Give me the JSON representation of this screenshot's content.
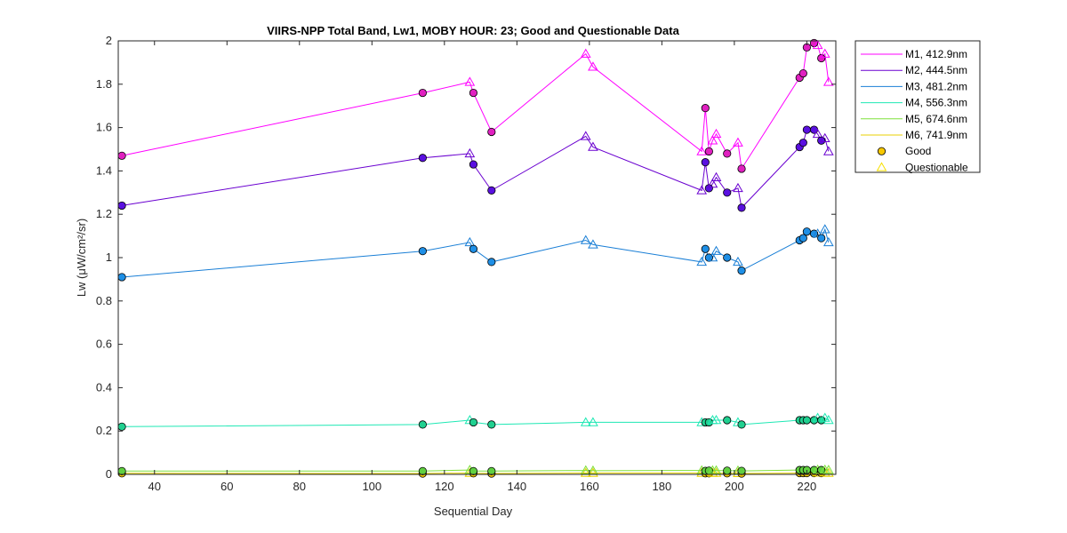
{
  "chart_data": {
    "type": "line",
    "title": "VIIRS-NPP Total Band,  Lw1, MOBY HOUR: 23;  Good and Questionable Data",
    "xlabel": "Sequential Day",
    "ylabel": "Lw (μW/cm²/sr)",
    "xlim": [
      30,
      228
    ],
    "ylim": [
      0,
      2
    ],
    "xticks": [
      40,
      60,
      80,
      100,
      120,
      140,
      160,
      180,
      200,
      220
    ],
    "yticks": [
      0,
      0.2,
      0.4,
      0.6,
      0.8,
      1,
      1.2,
      1.4,
      1.6,
      1.8,
      2
    ],
    "xtick_labels": [
      "40",
      "60",
      "80",
      "100",
      "120",
      "140",
      "160",
      "180",
      "200",
      "220"
    ],
    "ytick_labels": [
      "0",
      "0.2",
      "0.4",
      "0.6",
      "0.8",
      "1",
      "1.2",
      "1.4",
      "1.6",
      "1.8",
      "2"
    ],
    "x": [
      31,
      114,
      127,
      128,
      133,
      159,
      161,
      191,
      192,
      193,
      194,
      195,
      198,
      201,
      202,
      218,
      219,
      220,
      222,
      223,
      224,
      225,
      226
    ],
    "quality": [
      "G",
      "G",
      "Q",
      "G",
      "G",
      "Q",
      "Q",
      "Q",
      "G",
      "G",
      "Q",
      "Q",
      "G",
      "Q",
      "G",
      "G",
      "G",
      "G",
      "G",
      "Q",
      "G",
      "Q",
      "Q"
    ],
    "series": [
      {
        "name": "M1, 412.9nm",
        "color": "#ff00ff",
        "fill": "#e020c0",
        "values": [
          1.47,
          1.76,
          1.81,
          1.76,
          1.58,
          1.94,
          1.88,
          1.49,
          1.69,
          1.49,
          1.54,
          1.57,
          1.48,
          1.53,
          1.41,
          1.83,
          1.85,
          1.97,
          1.99,
          1.98,
          1.92,
          1.94,
          1.81
        ]
      },
      {
        "name": "M2, 444.5nm",
        "color": "#6a00d0",
        "fill": "#5a10e0",
        "values": [
          1.24,
          1.46,
          1.48,
          1.43,
          1.31,
          1.56,
          1.51,
          1.31,
          1.44,
          1.32,
          1.34,
          1.37,
          1.3,
          1.32,
          1.23,
          1.51,
          1.53,
          1.59,
          1.59,
          1.57,
          1.54,
          1.55,
          1.49
        ]
      },
      {
        "name": "M3, 481.2nm",
        "color": "#1a7fd6",
        "fill": "#1e8fe6",
        "values": [
          0.91,
          1.03,
          1.07,
          1.04,
          0.98,
          1.08,
          1.06,
          0.98,
          1.04,
          1.0,
          1.0,
          1.03,
          1.0,
          0.98,
          0.94,
          1.08,
          1.09,
          1.12,
          1.11,
          1.11,
          1.09,
          1.13,
          1.07
        ]
      },
      {
        "name": "M4, 556.3nm",
        "color": "#1ee8b4",
        "fill": "#20d090",
        "values": [
          0.22,
          0.23,
          0.25,
          0.24,
          0.23,
          0.24,
          0.24,
          0.24,
          0.24,
          0.24,
          0.25,
          0.25,
          0.25,
          0.24,
          0.23,
          0.25,
          0.25,
          0.25,
          0.25,
          0.26,
          0.25,
          0.26,
          0.25
        ]
      },
      {
        "name": "M5, 674.6nm",
        "color": "#7ee03a",
        "fill": "#60d040",
        "values": [
          0.015,
          0.015,
          0.02,
          0.015,
          0.015,
          0.018,
          0.017,
          0.018,
          0.016,
          0.017,
          0.018,
          0.018,
          0.017,
          0.017,
          0.016,
          0.02,
          0.02,
          0.02,
          0.02,
          0.021,
          0.02,
          0.021,
          0.02
        ]
      },
      {
        "name": "M6, 741.9nm",
        "color": "#e8d000",
        "fill": "#f0c800",
        "values": [
          0.005,
          0.004,
          0.006,
          0.005,
          0.004,
          0.006,
          0.006,
          0.006,
          0.005,
          0.005,
          0.006,
          0.006,
          0.005,
          0.005,
          0.004,
          0.006,
          0.006,
          0.006,
          0.006,
          0.007,
          0.006,
          0.007,
          0.006
        ]
      }
    ],
    "legend_extra": [
      {
        "name": "Good",
        "marker": "circle",
        "color": "#000000",
        "fill": "#f7c800"
      },
      {
        "name": "Questionable",
        "marker": "triangle",
        "color": "#f7e000",
        "fill": "none"
      }
    ],
    "legend_position": "outside-right-top",
    "grid": false
  }
}
